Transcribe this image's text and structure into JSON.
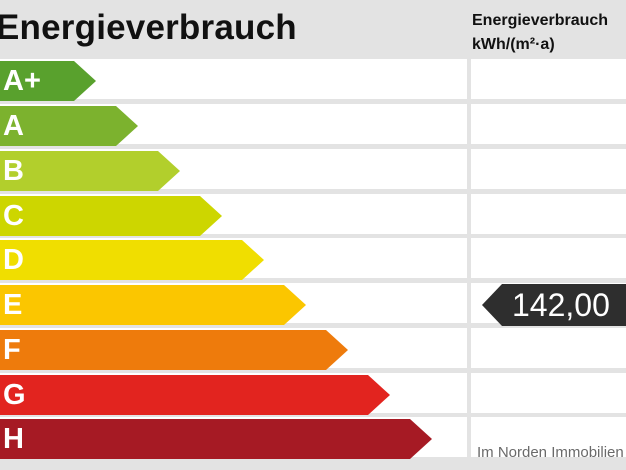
{
  "header": {
    "title": "Energieverbrauch",
    "unit_line1": "Energieverbrauch",
    "unit_line2": "kWh/(m²·a)"
  },
  "classes": [
    {
      "label": "A+",
      "color": "#59a12d"
    },
    {
      "label": "A",
      "color": "#7cb22e"
    },
    {
      "label": "B",
      "color": "#b2cf2c"
    },
    {
      "label": "C",
      "color": "#cdd600"
    },
    {
      "label": "D",
      "color": "#f0de00"
    },
    {
      "label": "E",
      "color": "#fbc600"
    },
    {
      "label": "F",
      "color": "#ee7b0c"
    },
    {
      "label": "G",
      "color": "#e2241f"
    },
    {
      "label": "H",
      "color": "#a61a24"
    }
  ],
  "indicator": {
    "value": "142,00",
    "class": "E",
    "color": "#2e2e2e"
  },
  "watermark": "Im Norden Immobilien"
}
